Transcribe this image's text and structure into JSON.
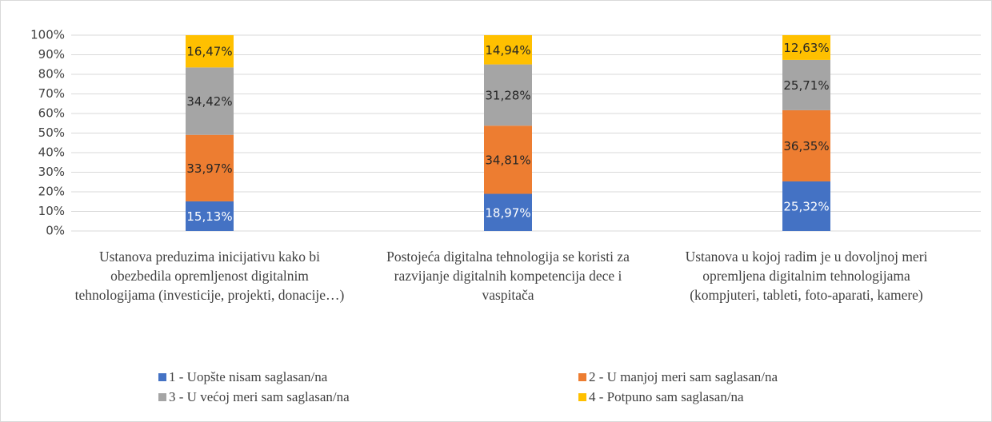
{
  "chart_data": {
    "type": "stacked_bar",
    "categories": [
      "Ustanova preduzima inicijativu kako bi obezbedila opremljenost digitalnim tehnologijama (investicije, projekti, donacije…)",
      "Postojeća digitalna tehnologija se koristi za razvijanje digitalnih kompetencija dece i vaspitača",
      "Ustanova u kojoj radim je u dovoljnoj meri opremljena digitalnim tehnologijama (kompjuteri, tableti, foto-aparati, kamere)"
    ],
    "series": [
      {
        "name": "1 - Uopšte nisam saglasan/na",
        "color": "#4472c4",
        "values": [
          15.13,
          18.97,
          25.32
        ],
        "value_labels": [
          "15,13%",
          "18,97%",
          "25,32%"
        ]
      },
      {
        "name": "2 - U manjoj meri sam saglasan/na",
        "color": "#ed7d31",
        "values": [
          33.97,
          34.81,
          36.35
        ],
        "value_labels": [
          "33,97%",
          "34,81%",
          "36,35%"
        ]
      },
      {
        "name": "3 - U većoj meri sam saglasan/na",
        "color": "#a5a5a5",
        "values": [
          34.42,
          31.28,
          25.71
        ],
        "value_labels": [
          "34,42%",
          "31,28%",
          "25,71%"
        ]
      },
      {
        "name": "4 - Potpuno sam saglasan/na",
        "color": "#ffc000",
        "values": [
          16.47,
          14.94,
          12.63
        ],
        "value_labels": [
          "16,47%",
          "14,94%",
          "12,63%"
        ]
      }
    ],
    "ylim": [
      0,
      100
    ],
    "yticks": [
      {
        "value": 0,
        "label": "0%"
      },
      {
        "value": 10,
        "label": "10%"
      },
      {
        "value": 20,
        "label": "20%"
      },
      {
        "value": 30,
        "label": "30%"
      },
      {
        "value": 40,
        "label": "40%"
      },
      {
        "value": 50,
        "label": "50%"
      },
      {
        "value": 60,
        "label": "60%"
      },
      {
        "value": 70,
        "label": "70%"
      },
      {
        "value": 80,
        "label": "80%"
      },
      {
        "value": 90,
        "label": "90%"
      },
      {
        "value": 100,
        "label": "100%"
      }
    ],
    "grid": true,
    "legend": "bottom"
  }
}
